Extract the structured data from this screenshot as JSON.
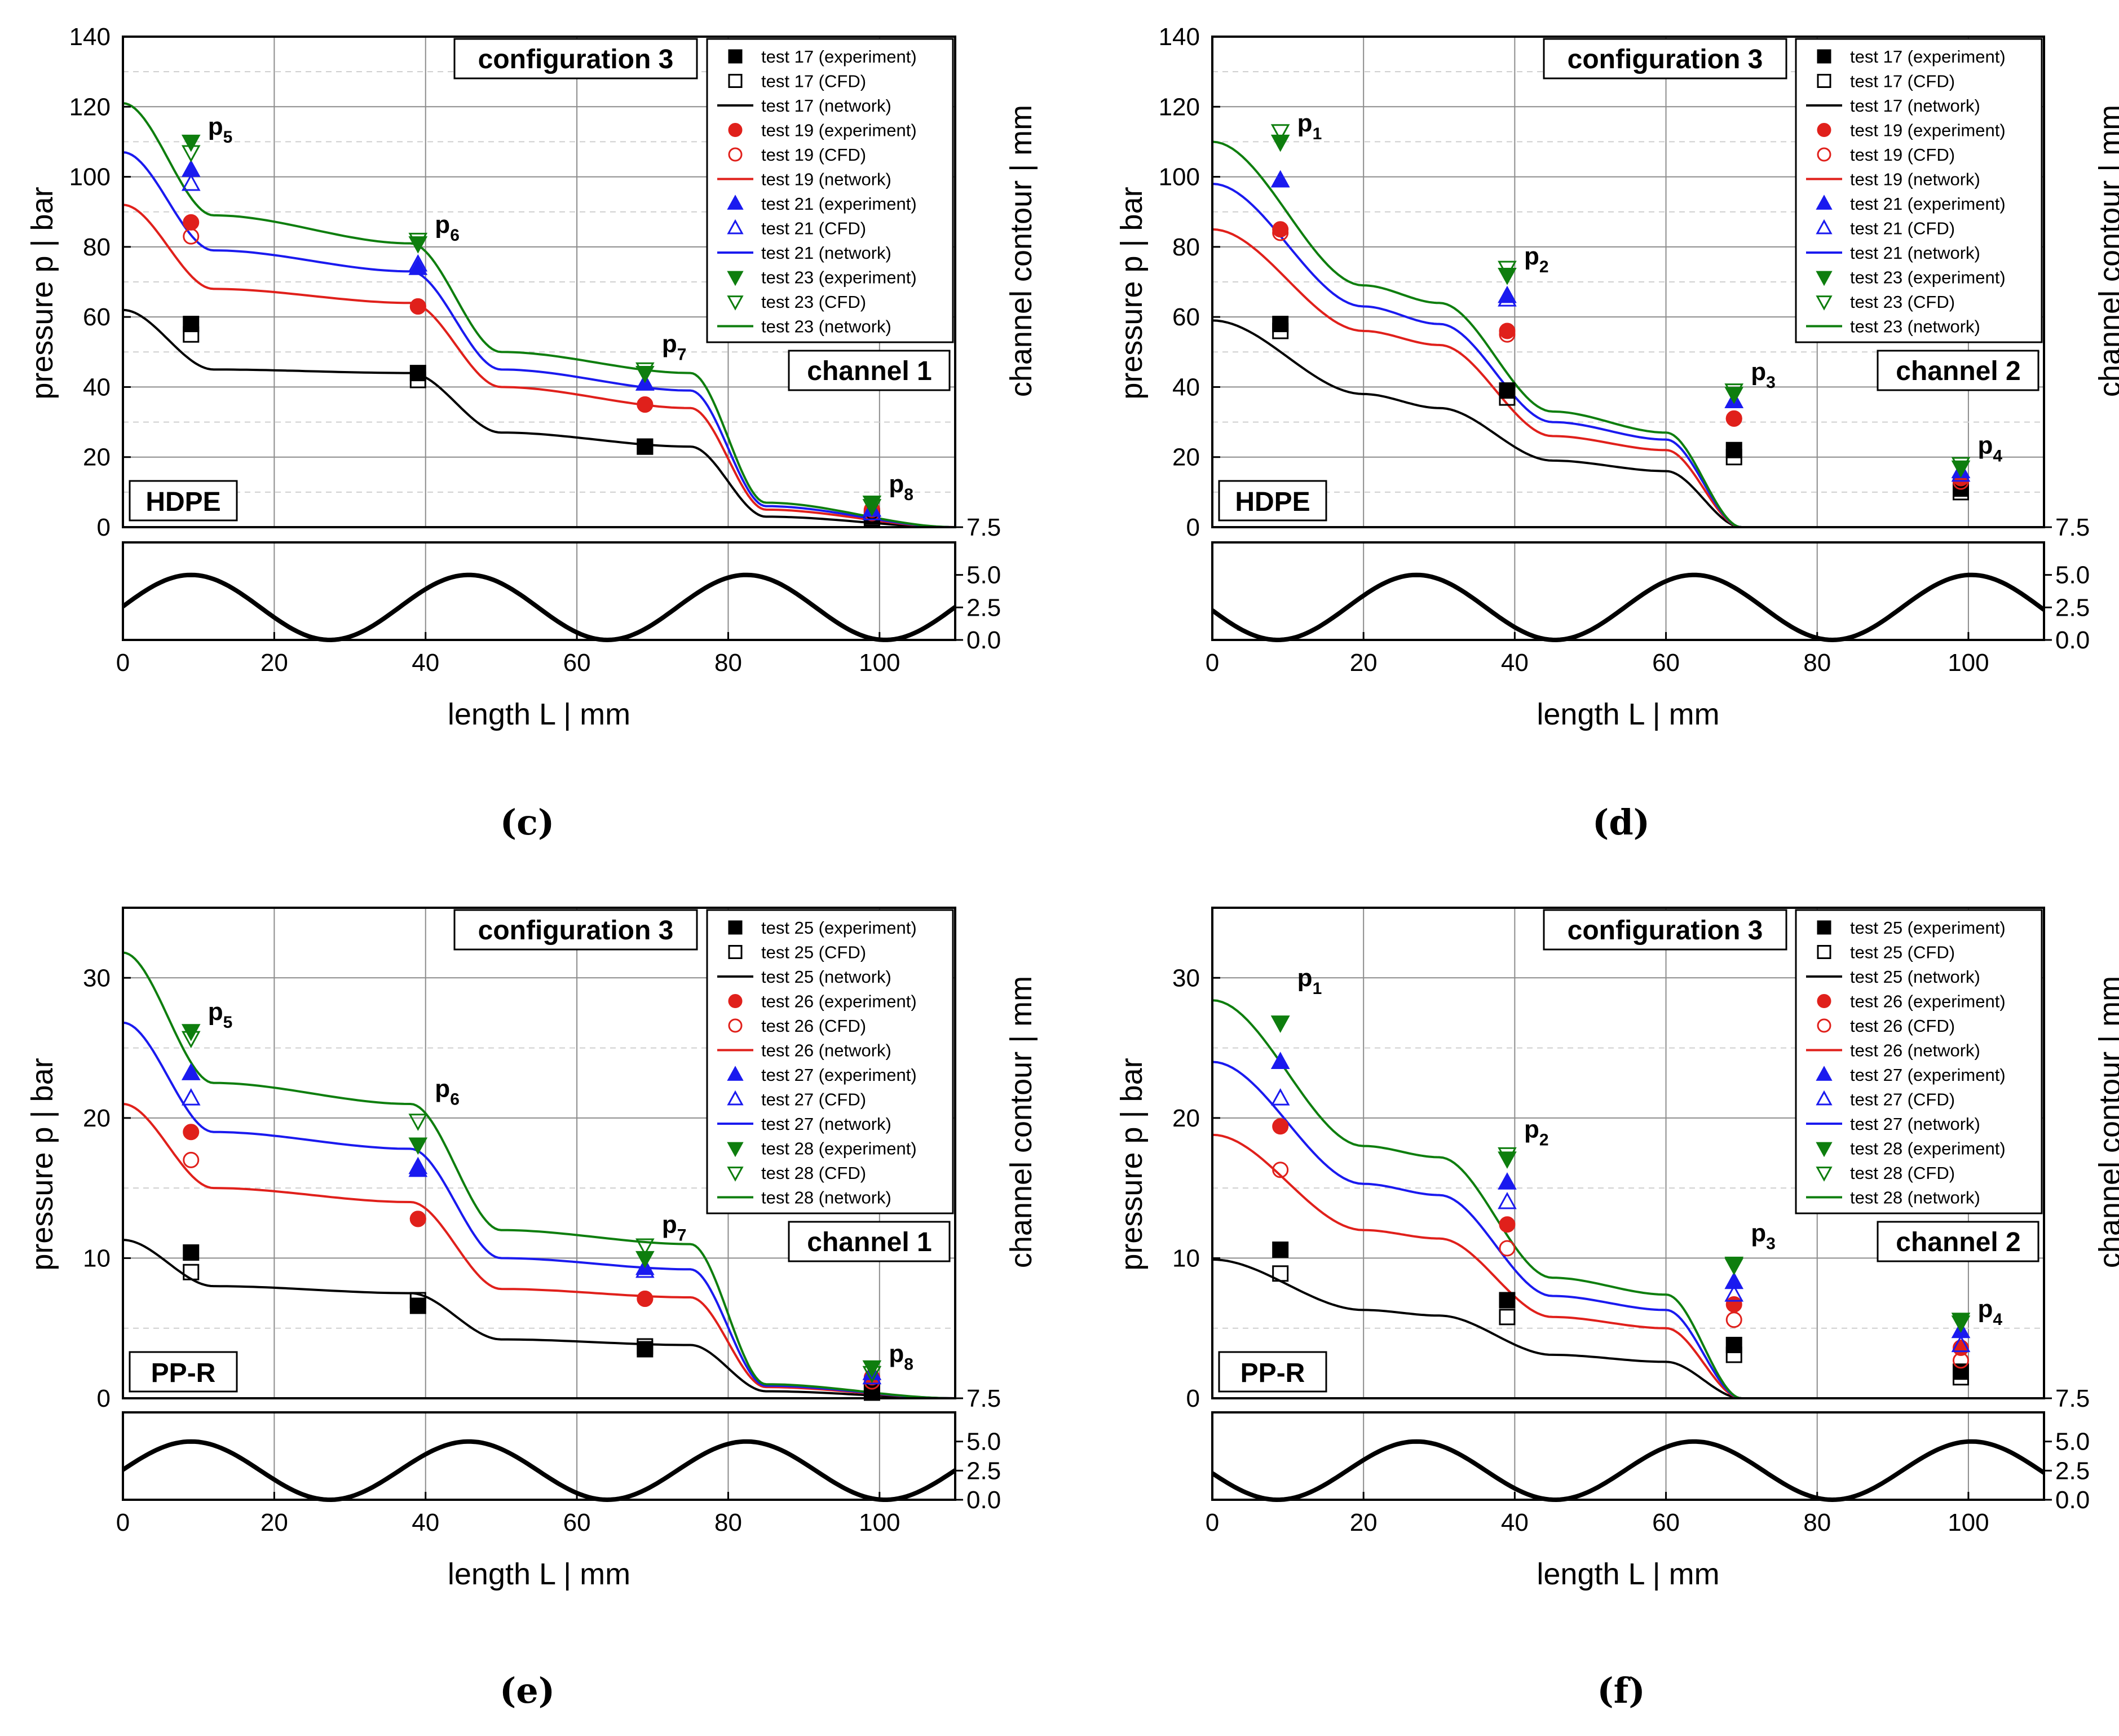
{
  "chart_data": [
    {
      "type": "line",
      "panel_label": "(c)",
      "title_box": "configuration 3",
      "channel_box": "channel 1",
      "material_box": "HDPE",
      "xlabel": "length L  |  mm",
      "ylabel": "pressure p  |  bar",
      "ylabel_right": "channel contour  |  mm",
      "xlim": [
        0,
        110
      ],
      "ylim": [
        0,
        140
      ],
      "xticks": [
        "0",
        "20",
        "40",
        "60",
        "80",
        "100"
      ],
      "yticks": [
        "0",
        "20",
        "40",
        "60",
        "80",
        "100",
        "120",
        "140"
      ],
      "contour_ticks": [
        "7.5",
        "5.0",
        "2.5",
        "0.0"
      ],
      "contour_phase": 9,
      "annotations": [
        {
          "label": "p",
          "sub": "5",
          "x": 9,
          "y": 112
        },
        {
          "label": "p",
          "sub": "6",
          "x": 39,
          "y": 84
        },
        {
          "label": "p",
          "sub": "7",
          "x": 69,
          "y": 50
        },
        {
          "label": "p",
          "sub": "8",
          "x": 99,
          "y": 10
        }
      ],
      "legend": [
        "test 17 (experiment)",
        "test 17 (CFD)",
        "test 17 (network)",
        "test 19 (experiment)",
        "test 19 (CFD)",
        "test 19 (network)",
        "test 21 (experiment)",
        "test 21 (CFD)",
        "test 21 (network)",
        "test 23 (experiment)",
        "test 23 (CFD)",
        "test 23 (network)"
      ],
      "series": [
        {
          "name": "test 17",
          "color": "#000000",
          "exp_marker": "square",
          "cfd_marker": "square",
          "x": [
            9,
            39,
            69,
            99
          ],
          "experiment": [
            58,
            44,
            23,
            3
          ],
          "cfd": [
            55,
            42,
            23,
            2.5
          ],
          "network": [
            62,
            45,
            44,
            27,
            23,
            3,
            0
          ]
        },
        {
          "name": "test 19",
          "color": "#e0201b",
          "exp_marker": "circle",
          "cfd_marker": "circle",
          "x": [
            9,
            39,
            69,
            99
          ],
          "experiment": [
            87,
            63,
            35,
            5
          ],
          "cfd": [
            83,
            63,
            35,
            4
          ],
          "network": [
            92,
            68,
            64,
            40,
            34,
            5,
            0
          ]
        },
        {
          "name": "test 21",
          "color": "#1a1aef",
          "exp_marker": "triangle-up",
          "cfd_marker": "triangle-up",
          "x": [
            9,
            39,
            69,
            99
          ],
          "experiment": [
            102,
            74,
            41,
            5
          ],
          "cfd": [
            98,
            75,
            41,
            4
          ],
          "network": [
            107,
            79,
            73,
            45,
            39,
            6,
            0
          ]
        },
        {
          "name": "test 23",
          "color": "#0e7e0e",
          "exp_marker": "triangle-down",
          "cfd_marker": "triangle-down",
          "x": [
            9,
            39,
            69,
            99
          ],
          "experiment": [
            110,
            81,
            44,
            7
          ],
          "cfd": [
            107,
            82,
            45,
            6
          ],
          "network": [
            121,
            89,
            81,
            50,
            44,
            7,
            0
          ]
        }
      ]
    },
    {
      "type": "line",
      "panel_label": "(d)",
      "title_box": "configuration 3",
      "channel_box": "channel 2",
      "material_box": "HDPE",
      "xlabel": "length L  |  mm",
      "ylabel": "pressure p  |  bar",
      "ylabel_right": "channel contour  |  mm",
      "xlim": [
        0,
        110
      ],
      "ylim": [
        0,
        140
      ],
      "xticks": [
        "0",
        "20",
        "40",
        "60",
        "80",
        "100"
      ],
      "yticks": [
        "0",
        "20",
        "40",
        "60",
        "80",
        "100",
        "120",
        "140"
      ],
      "contour_ticks": [
        "7.5",
        "5.0",
        "2.5",
        "0.0"
      ],
      "contour_phase": 27,
      "annotations": [
        {
          "label": "p",
          "sub": "1",
          "x": 9,
          "y": 113
        },
        {
          "label": "p",
          "sub": "2",
          "x": 39,
          "y": 75
        },
        {
          "label": "p",
          "sub": "3",
          "x": 69,
          "y": 42
        },
        {
          "label": "p",
          "sub": "4",
          "x": 99,
          "y": 21
        }
      ],
      "legend": [
        "test 17 (experiment)",
        "test 17 (CFD)",
        "test 17 (network)",
        "test 19 (experiment)",
        "test 19 (CFD)",
        "test 19 (network)",
        "test 21 (experiment)",
        "test 21 (CFD)",
        "test 21 (network)",
        "test 23 (experiment)",
        "test 23 (CFD)",
        "test 23 (network)"
      ],
      "series": [
        {
          "name": "test 17",
          "color": "#000000",
          "exp_marker": "square",
          "cfd_marker": "square",
          "x": [
            9,
            39,
            69,
            99
          ],
          "experiment": [
            58,
            39,
            22,
            11
          ],
          "cfd": [
            56,
            37,
            20,
            10
          ],
          "network": [
            59,
            38,
            34,
            19,
            16,
            0
          ]
        },
        {
          "name": "test 19",
          "color": "#e0201b",
          "exp_marker": "circle",
          "cfd_marker": "circle",
          "x": [
            9,
            39,
            69,
            99
          ],
          "experiment": [
            85,
            56,
            31,
            14
          ],
          "cfd": [
            84,
            55,
            31,
            13
          ],
          "network": [
            85,
            56,
            52,
            26,
            22,
            0
          ]
        },
        {
          "name": "test 21",
          "color": "#1a1aef",
          "exp_marker": "triangle-up",
          "cfd_marker": "triangle-up",
          "x": [
            9,
            39,
            69,
            99
          ],
          "experiment": [
            99,
            66,
            36,
            16
          ],
          "cfd": [
            99,
            65,
            36,
            15
          ],
          "network": [
            98,
            63,
            58,
            30,
            25,
            0
          ]
        },
        {
          "name": "test 23",
          "color": "#0e7e0e",
          "exp_marker": "triangle-down",
          "cfd_marker": "triangle-down",
          "x": [
            9,
            39,
            69,
            99
          ],
          "experiment": [
            110,
            72,
            38,
            17
          ],
          "cfd": [
            113,
            74,
            39,
            18
          ],
          "network": [
            110,
            69,
            64,
            33,
            27,
            0
          ]
        }
      ]
    },
    {
      "type": "line",
      "panel_label": "(e)",
      "title_box": "configuration 3",
      "channel_box": "channel 1",
      "material_box": "PP-R",
      "xlabel": "length L  |  mm",
      "ylabel": "pressure p  |  bar",
      "ylabel_right": "channel contour  |  mm",
      "xlim": [
        0,
        110
      ],
      "ylim": [
        0,
        35
      ],
      "xticks": [
        "0",
        "20",
        "40",
        "60",
        "80",
        "100"
      ],
      "yticks": [
        "0",
        "10",
        "20",
        "30"
      ],
      "contour_ticks": [
        "7.5",
        "5.0",
        "2.5",
        "0.0"
      ],
      "contour_phase": 9,
      "annotations": [
        {
          "label": "p",
          "sub": "5",
          "x": 9,
          "y": 27
        },
        {
          "label": "p",
          "sub": "6",
          "x": 39,
          "y": 21.5
        },
        {
          "label": "p",
          "sub": "7",
          "x": 69,
          "y": 11.8
        },
        {
          "label": "p",
          "sub": "8",
          "x": 99,
          "y": 2.6
        }
      ],
      "legend": [
        "test 25 (experiment)",
        "test 25 (CFD)",
        "test 25 (network)",
        "test 26 (experiment)",
        "test 26 (CFD)",
        "test 26 (network)",
        "test 27 (experiment)",
        "test 27 (CFD)",
        "test 27 (network)",
        "test 28 (experiment)",
        "test 28 (CFD)",
        "test 28 (network)"
      ],
      "series": [
        {
          "name": "test 25",
          "color": "#000000",
          "exp_marker": "square",
          "cfd_marker": "square",
          "x": [
            9,
            39,
            69,
            99
          ],
          "experiment": [
            10.4,
            6.6,
            3.5,
            0.6
          ],
          "cfd": [
            9,
            7,
            3.7,
            0.4
          ],
          "network": [
            11.3,
            8,
            7.5,
            4.2,
            3.8,
            0.5,
            0
          ]
        },
        {
          "name": "test 26",
          "color": "#e0201b",
          "exp_marker": "circle",
          "cfd_marker": "circle",
          "x": [
            9,
            39,
            69,
            99
          ],
          "experiment": [
            19,
            12.8,
            7.1,
            1.5
          ],
          "cfd": [
            17,
            12.8,
            7.1,
            1.2
          ],
          "network": [
            21,
            15,
            14,
            7.8,
            7.2,
            0.8,
            0
          ]
        },
        {
          "name": "test 27",
          "color": "#1a1aef",
          "exp_marker": "triangle-up",
          "cfd_marker": "triangle-up",
          "x": [
            9,
            39,
            69,
            99
          ],
          "experiment": [
            23.2,
            16.3,
            9.3,
            1.8
          ],
          "cfd": [
            21.4,
            16.5,
            9.1,
            1.5
          ],
          "network": [
            26.8,
            19,
            17.8,
            10,
            9.2,
            0.9,
            0
          ]
        },
        {
          "name": "test 28",
          "color": "#0e7e0e",
          "exp_marker": "triangle-down",
          "cfd_marker": "triangle-down",
          "x": [
            9,
            39,
            69,
            99
          ],
          "experiment": [
            26.2,
            18.1,
            10,
            2.2
          ],
          "cfd": [
            25.7,
            19.8,
            10.9,
            1.8
          ],
          "network": [
            31.8,
            22.5,
            21,
            12,
            11,
            1,
            0
          ]
        }
      ]
    },
    {
      "type": "line",
      "panel_label": "(f)",
      "title_box": "configuration 3",
      "channel_box": "channel 2",
      "material_box": "PP-R",
      "xlabel": "length L  |  mm",
      "ylabel": "pressure p  |  bar",
      "ylabel_right": "channel contour  |  mm",
      "xlim": [
        0,
        110
      ],
      "ylim": [
        0,
        35
      ],
      "xticks": [
        "0",
        "20",
        "40",
        "60",
        "80",
        "100"
      ],
      "yticks": [
        "0",
        "10",
        "20",
        "30"
      ],
      "contour_ticks": [
        "7.5",
        "5.0",
        "2.5",
        "0.0"
      ],
      "contour_phase": 27,
      "annotations": [
        {
          "label": "p",
          "sub": "1",
          "x": 9,
          "y": 29.4
        },
        {
          "label": "p",
          "sub": "2",
          "x": 39,
          "y": 18.6
        },
        {
          "label": "p",
          "sub": "3",
          "x": 69,
          "y": 11.2
        },
        {
          "label": "p",
          "sub": "4",
          "x": 99,
          "y": 5.8
        }
      ],
      "legend": [
        "test 25 (experiment)",
        "test 25 (CFD)",
        "test 25 (network)",
        "test 26 (experiment)",
        "test 26 (CFD)",
        "test 26 (network)",
        "test 27 (experiment)",
        "test 27 (CFD)",
        "test 27 (network)",
        "test 28 (experiment)",
        "test 28 (CFD)",
        "test 28 (network)"
      ],
      "series": [
        {
          "name": "test 25",
          "color": "#000000",
          "exp_marker": "square",
          "cfd_marker": "square",
          "x": [
            9,
            39,
            69,
            99
          ],
          "experiment": [
            10.6,
            7,
            3.8,
            1.9
          ],
          "cfd": [
            8.9,
            5.8,
            3.1,
            1.5
          ],
          "network": [
            9.9,
            6.3,
            5.9,
            3.1,
            2.6,
            0
          ]
        },
        {
          "name": "test 26",
          "color": "#e0201b",
          "exp_marker": "circle",
          "cfd_marker": "circle",
          "x": [
            9,
            39,
            69,
            99
          ],
          "experiment": [
            19.4,
            12.4,
            6.7,
            3.6
          ],
          "cfd": [
            16.3,
            10.7,
            5.6,
            2.7
          ],
          "network": [
            18.8,
            12,
            11.4,
            5.8,
            5,
            0
          ]
        },
        {
          "name": "test 27",
          "color": "#1a1aef",
          "exp_marker": "triangle-up",
          "cfd_marker": "triangle-up",
          "x": [
            9,
            39,
            69,
            99
          ],
          "experiment": [
            24,
            15.4,
            8.3,
            4.8
          ],
          "cfd": [
            21.4,
            14,
            7.4,
            3.8
          ],
          "network": [
            24,
            15.3,
            14.5,
            7.3,
            6.3,
            0
          ]
        },
        {
          "name": "test 28",
          "color": "#0e7e0e",
          "exp_marker": "triangle-down",
          "cfd_marker": "triangle-down",
          "x": [
            9,
            39,
            69,
            99
          ],
          "experiment": [
            26.8,
            17.1,
            9.6,
            5.6
          ],
          "cfd": [
            26.8,
            17.4,
            9.5,
            5.4
          ],
          "network": [
            28.4,
            18,
            17.2,
            8.6,
            7.4,
            0
          ]
        }
      ]
    }
  ]
}
